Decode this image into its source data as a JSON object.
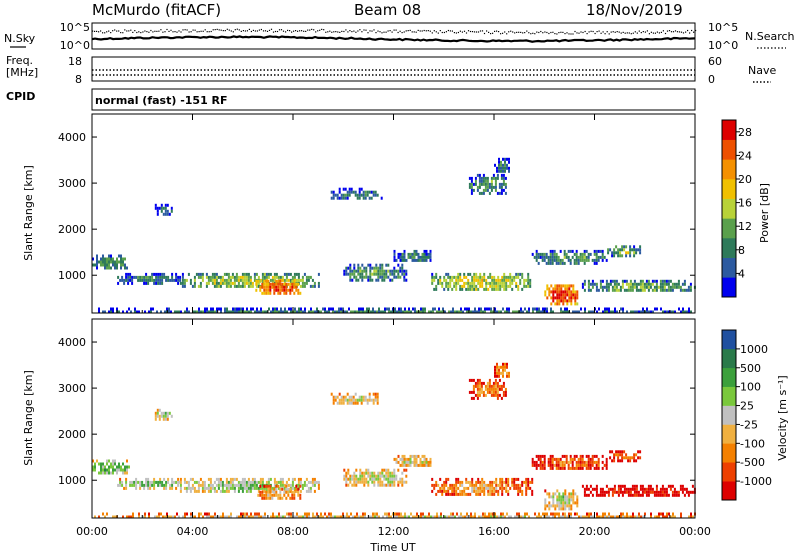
{
  "header": {
    "station": "McMurdo (fitACF)",
    "beam": "Beam 08",
    "date": "18/Nov/2019"
  },
  "noise_panel": {
    "left_label": "N.Sky",
    "right_label": "N.Search",
    "left_ticks": [
      "10^5",
      "10^0"
    ],
    "right_ticks": [
      "10^5",
      "10^0"
    ]
  },
  "freq_panel": {
    "left_label_line1": "Freq.",
    "left_label_line2": "[MHz]",
    "right_label": "Nave",
    "left_ticks": [
      "18",
      "8"
    ],
    "right_ticks": [
      "60",
      "0"
    ]
  },
  "cpid": {
    "label": "CPID",
    "text": "normal (fast) -151 RF"
  },
  "colors": {
    "power_scale": [
      "#0000ee",
      "#2c5aa0",
      "#2e7a5a",
      "#5aa04c",
      "#b8d238",
      "#f0c000",
      "#f49000",
      "#ee5000",
      "#dd0000"
    ],
    "velocity_scale": [
      "#dd0000",
      "#ee4000",
      "#f48000",
      "#f0b040",
      "#c0c0c0",
      "#7ac83c",
      "#3ca03c",
      "#2a7a4a",
      "#2050a0"
    ]
  },
  "chart_data": [
    {
      "type": "heatmap",
      "name": "power",
      "xlabel": "Time UT",
      "ylabel": "Slant Range [km]",
      "xlim": [
        0,
        24
      ],
      "ylim": [
        180,
        4500
      ],
      "x_tick_labels": [
        "00:00",
        "04:00",
        "08:00",
        "12:00",
        "16:00",
        "20:00",
        "00:00"
      ],
      "x_ticks": [
        0,
        4,
        8,
        12,
        16,
        20,
        24
      ],
      "y_ticks": [
        1000,
        2000,
        3000,
        4000
      ],
      "colorbar": {
        "label": "Power [dB]",
        "ticks": [
          4,
          8,
          12,
          16,
          20,
          24,
          28
        ],
        "range": [
          0,
          30
        ]
      },
      "echo_regions": [
        {
          "t0": 0.0,
          "t1": 1.5,
          "r0": 1150,
          "r1": 1450,
          "level": 0.35
        },
        {
          "t0": 0.0,
          "t1": 24.0,
          "r0": 180,
          "r1": 300,
          "level": 0.3
        },
        {
          "t0": 1.0,
          "t1": 3.5,
          "r0": 850,
          "r1": 1050,
          "level": 0.3
        },
        {
          "t0": 2.5,
          "t1": 3.2,
          "r0": 2350,
          "r1": 2550,
          "level": 0.25
        },
        {
          "t0": 3.5,
          "t1": 9.0,
          "r0": 750,
          "r1": 1050,
          "level": 0.5
        },
        {
          "t0": 6.5,
          "t1": 8.3,
          "r0": 580,
          "r1": 900,
          "level": 0.85
        },
        {
          "t0": 9.5,
          "t1": 11.5,
          "r0": 2650,
          "r1": 2900,
          "level": 0.25
        },
        {
          "t0": 10.0,
          "t1": 12.5,
          "r0": 900,
          "r1": 1250,
          "level": 0.35
        },
        {
          "t0": 12.0,
          "t1": 13.5,
          "r0": 1300,
          "r1": 1550,
          "level": 0.3
        },
        {
          "t0": 13.5,
          "t1": 17.5,
          "r0": 700,
          "r1": 1050,
          "level": 0.55
        },
        {
          "t0": 15.0,
          "t1": 16.5,
          "r0": 2800,
          "r1": 3200,
          "level": 0.35
        },
        {
          "t0": 16.0,
          "t1": 16.6,
          "r0": 3250,
          "r1": 3550,
          "level": 0.25
        },
        {
          "t0": 18.0,
          "t1": 19.3,
          "r0": 400,
          "r1": 800,
          "level": 0.9
        },
        {
          "t0": 17.5,
          "t1": 20.5,
          "r0": 1250,
          "r1": 1550,
          "level": 0.35
        },
        {
          "t0": 20.5,
          "t1": 21.8,
          "r0": 1450,
          "r1": 1650,
          "level": 0.45
        },
        {
          "t0": 19.5,
          "t1": 24.0,
          "r0": 650,
          "r1": 900,
          "level": 0.4
        }
      ]
    },
    {
      "type": "heatmap",
      "name": "velocity",
      "xlabel": "Time UT",
      "ylabel": "Slant Range [km]",
      "xlim": [
        0,
        24
      ],
      "ylim": [
        180,
        4500
      ],
      "x_tick_labels": [
        "00:00",
        "04:00",
        "08:00",
        "12:00",
        "16:00",
        "20:00",
        "00:00"
      ],
      "x_ticks": [
        0,
        4,
        8,
        12,
        16,
        20,
        24
      ],
      "y_ticks": [
        1000,
        2000,
        3000,
        4000
      ],
      "colorbar": {
        "label": "Velocity [m s⁻¹]",
        "tick_labels": [
          "-1000",
          "-500",
          "-100",
          "-25",
          "25",
          "100",
          "500",
          "1000"
        ]
      },
      "echo_regions": [
        {
          "t0": 0.0,
          "t1": 1.5,
          "r0": 1150,
          "r1": 1450,
          "level": 0.7
        },
        {
          "t0": 0.0,
          "t1": 24.0,
          "r0": 180,
          "r1": 300,
          "level": 0.45
        },
        {
          "t0": 1.0,
          "t1": 3.5,
          "r0": 850,
          "r1": 1050,
          "level": 0.65
        },
        {
          "t0": 2.5,
          "t1": 3.2,
          "r0": 2350,
          "r1": 2550,
          "level": 0.6
        },
        {
          "t0": 3.5,
          "t1": 9.0,
          "r0": 750,
          "r1": 1050,
          "level": 0.62
        },
        {
          "t0": 6.5,
          "t1": 8.3,
          "r0": 580,
          "r1": 900,
          "level": 0.4
        },
        {
          "t0": 9.5,
          "t1": 11.5,
          "r0": 2650,
          "r1": 2900,
          "level": 0.5
        },
        {
          "t0": 10.0,
          "t1": 12.5,
          "r0": 900,
          "r1": 1250,
          "level": 0.55
        },
        {
          "t0": 12.0,
          "t1": 13.5,
          "r0": 1300,
          "r1": 1550,
          "level": 0.5
        },
        {
          "t0": 13.5,
          "t1": 17.5,
          "r0": 700,
          "r1": 1050,
          "level": 0.35
        },
        {
          "t0": 15.0,
          "t1": 16.5,
          "r0": 2800,
          "r1": 3200,
          "level": 0.3
        },
        {
          "t0": 16.0,
          "t1": 16.6,
          "r0": 3250,
          "r1": 3550,
          "level": 0.35
        },
        {
          "t0": 18.0,
          "t1": 19.3,
          "r0": 400,
          "r1": 800,
          "level": 0.55
        },
        {
          "t0": 17.5,
          "t1": 20.5,
          "r0": 1250,
          "r1": 1550,
          "level": 0.25
        },
        {
          "t0": 20.5,
          "t1": 21.8,
          "r0": 1450,
          "r1": 1650,
          "level": 0.25
        },
        {
          "t0": 19.5,
          "t1": 24.0,
          "r0": 650,
          "r1": 900,
          "level": 0.1
        }
      ]
    }
  ]
}
